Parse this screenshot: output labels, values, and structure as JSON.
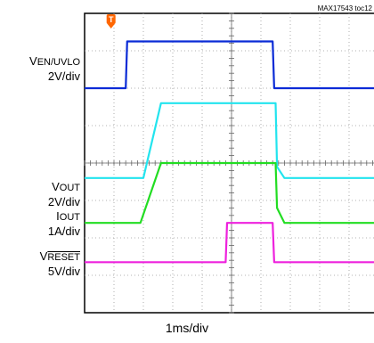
{
  "header": {
    "figure_tag": "MAX17543 toc12"
  },
  "labels": {
    "ven": {
      "main": "V",
      "sub": "EN/UVLO",
      "scale": "2V/div"
    },
    "vout": {
      "main": "V",
      "sub": "OUT",
      "scale": "2V/div"
    },
    "iout": {
      "main": "I",
      "sub": "OUT",
      "scale": "1A/div"
    },
    "vreset": {
      "main": "V",
      "sub": "RESET",
      "scale": "5V/div"
    },
    "time_base": "1ms/div"
  },
  "chart_data": {
    "type": "line",
    "title": "",
    "xlabel": "1ms/div",
    "x_unit": "ms",
    "x_divisions": 10,
    "y_divisions": 8,
    "grid": true,
    "trigger_marker": {
      "label": "T",
      "x": 0.9,
      "color": "#ff6600"
    },
    "series": [
      {
        "name": "VEN/UVLO",
        "scale": "2V/div",
        "color": "#0a2bd6",
        "points": [
          [
            0,
            6.0
          ],
          [
            1.4,
            6.0
          ],
          [
            1.45,
            7.25
          ],
          [
            6.4,
            7.25
          ],
          [
            6.45,
            6.0
          ],
          [
            10,
            6.0
          ]
        ]
      },
      {
        "name": "VOUT",
        "scale": "2V/div",
        "color": "#22e4ee",
        "points": [
          [
            0,
            3.6
          ],
          [
            2.0,
            3.6
          ],
          [
            2.6,
            5.6
          ],
          [
            6.5,
            5.6
          ],
          [
            6.55,
            3.9
          ],
          [
            6.8,
            3.6
          ],
          [
            10,
            3.6
          ]
        ]
      },
      {
        "name": "IOUT",
        "scale": "1A/div",
        "color": "#22dd22",
        "points": [
          [
            0,
            2.4
          ],
          [
            1.9,
            2.4
          ],
          [
            2.6,
            4.0
          ],
          [
            6.5,
            4.0
          ],
          [
            6.55,
            2.8
          ],
          [
            6.8,
            2.4
          ],
          [
            10,
            2.4
          ]
        ]
      },
      {
        "name": "VRESET",
        "scale": "5V/div",
        "color": "#ee22dd",
        "points": [
          [
            0,
            1.35
          ],
          [
            4.8,
            1.35
          ],
          [
            4.85,
            2.4
          ],
          [
            6.4,
            2.4
          ],
          [
            6.45,
            1.35
          ],
          [
            10,
            1.35
          ]
        ]
      }
    ]
  }
}
